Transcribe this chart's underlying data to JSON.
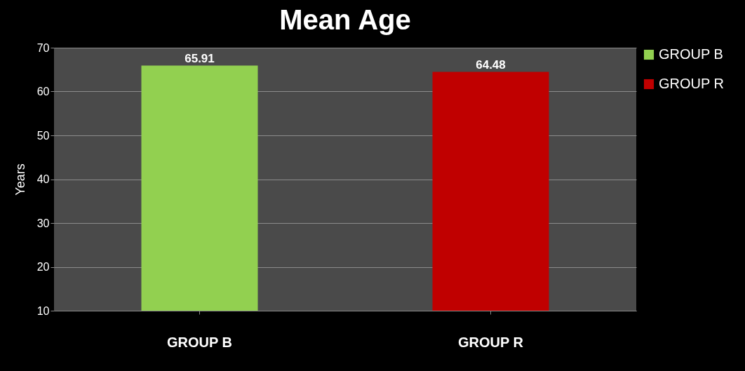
{
  "chart_data": {
    "type": "bar",
    "title": "Mean Age",
    "ylabel": "Years",
    "categories": [
      "GROUP B",
      "GROUP R"
    ],
    "series": [
      {
        "name": "GROUP B",
        "color": "#92d050",
        "values": [
          65.91,
          null
        ]
      },
      {
        "name": "GROUP R",
        "color": "#c00000",
        "values": [
          null,
          64.48
        ]
      }
    ],
    "ylim": [
      10,
      70
    ],
    "yticks": [
      10,
      20,
      30,
      40,
      50,
      60,
      70
    ],
    "grid": "y",
    "legend": "right",
    "data_labels": true
  }
}
